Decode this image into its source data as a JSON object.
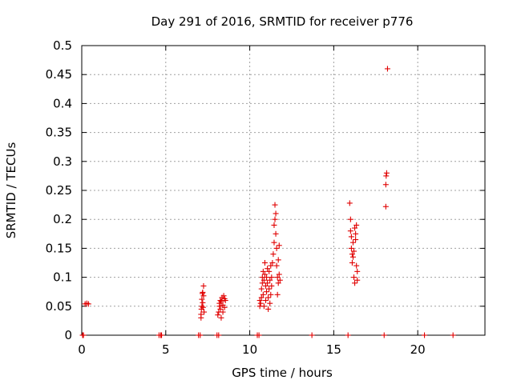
{
  "chart_data": {
    "type": "scatter",
    "title": "Day 291 of 2016, SRMTID for receiver p776",
    "xlabel": "GPS time / hours",
    "ylabel": "SRMTID / TECUs",
    "xlim": [
      0,
      24
    ],
    "ylim": [
      0,
      0.5
    ],
    "xticks": [
      0,
      5,
      10,
      15,
      20
    ],
    "yticks": [
      0,
      0.05,
      0.1,
      0.15,
      0.2,
      0.25,
      0.3,
      0.35,
      0.4,
      0.45,
      0.5
    ],
    "xtick_labels": [
      "0",
      "5",
      "10",
      "15",
      "20"
    ],
    "ytick_labels": [
      "0",
      "0.05",
      "0.1",
      "0.15",
      "0.2",
      "0.25",
      "0.3",
      "0.35",
      "0.4",
      "0.45",
      "0.5"
    ],
    "grid": true,
    "legend": "none",
    "marker": "+",
    "color": "#e00000",
    "series": [
      {
        "points": [
          [
            0.05,
            0
          ],
          [
            0.1,
            0
          ],
          [
            0.2,
            0.054
          ],
          [
            0.3,
            0.055
          ],
          [
            0.4,
            0.054
          ],
          [
            4.6,
            0
          ],
          [
            4.7,
            0
          ],
          [
            4.75,
            0
          ],
          [
            6.95,
            0
          ],
          [
            7.05,
            0
          ],
          [
            7.1,
            0.03
          ],
          [
            7.1,
            0.036
          ],
          [
            7.12,
            0.045
          ],
          [
            7.15,
            0.05
          ],
          [
            7.15,
            0.062
          ],
          [
            7.18,
            0.072
          ],
          [
            7.2,
            0.074
          ],
          [
            7.2,
            0.056
          ],
          [
            7.22,
            0.048
          ],
          [
            7.25,
            0.085
          ],
          [
            7.25,
            0.068
          ],
          [
            7.28,
            0.04
          ],
          [
            8.05,
            0
          ],
          [
            8.15,
            0
          ],
          [
            8.1,
            0.035
          ],
          [
            8.15,
            0.04
          ],
          [
            8.2,
            0.05
          ],
          [
            8.2,
            0.055
          ],
          [
            8.25,
            0.06
          ],
          [
            8.25,
            0.045
          ],
          [
            8.3,
            0.03
          ],
          [
            8.3,
            0.058
          ],
          [
            8.35,
            0.065
          ],
          [
            8.4,
            0.052
          ],
          [
            8.4,
            0.04
          ],
          [
            8.45,
            0.068
          ],
          [
            8.5,
            0.063
          ],
          [
            8.5,
            0.048
          ],
          [
            8.55,
            0.06
          ],
          [
            10.45,
            0
          ],
          [
            10.55,
            0
          ],
          [
            10.6,
            0.05
          ],
          [
            10.6,
            0.06
          ],
          [
            10.65,
            0.055
          ],
          [
            10.7,
            0.065
          ],
          [
            10.7,
            0.08
          ],
          [
            10.75,
            0.09
          ],
          [
            10.75,
            0.1
          ],
          [
            10.8,
            0.11
          ],
          [
            10.8,
            0.07
          ],
          [
            10.85,
            0.05
          ],
          [
            10.85,
            0.095
          ],
          [
            10.9,
            0.105
          ],
          [
            10.9,
            0.125
          ],
          [
            10.95,
            0.085
          ],
          [
            10.95,
            0.06
          ],
          [
            11.0,
            0.075
          ],
          [
            11.0,
            0.1
          ],
          [
            11.05,
            0.115
          ],
          [
            11.05,
            0.09
          ],
          [
            11.1,
            0.045
          ],
          [
            11.1,
            0.065
          ],
          [
            11.15,
            0.08
          ],
          [
            11.15,
            0.11
          ],
          [
            11.2,
            0.095
          ],
          [
            11.2,
            0.055
          ],
          [
            11.25,
            0.07
          ],
          [
            11.25,
            0.12
          ],
          [
            11.3,
            0.1
          ],
          [
            11.3,
            0.085
          ],
          [
            11.35,
            0.125
          ],
          [
            11.4,
            0.14
          ],
          [
            11.45,
            0.16
          ],
          [
            11.45,
            0.19
          ],
          [
            11.5,
            0.2
          ],
          [
            11.5,
            0.225
          ],
          [
            11.55,
            0.21
          ],
          [
            11.55,
            0.175
          ],
          [
            11.6,
            0.15
          ],
          [
            11.6,
            0.12
          ],
          [
            11.65,
            0.1
          ],
          [
            11.65,
            0.07
          ],
          [
            11.7,
            0.09
          ],
          [
            11.7,
            0.13
          ],
          [
            11.75,
            0.155
          ],
          [
            11.75,
            0.105
          ],
          [
            11.8,
            0.095
          ],
          [
            13.7,
            0
          ],
          [
            15.85,
            0
          ],
          [
            15.95,
            0.228
          ],
          [
            16.0,
            0.2
          ],
          [
            16.0,
            0.18
          ],
          [
            16.05,
            0.17
          ],
          [
            16.05,
            0.15
          ],
          [
            16.1,
            0.14
          ],
          [
            16.1,
            0.125
          ],
          [
            16.15,
            0.16
          ],
          [
            16.15,
            0.135
          ],
          [
            16.2,
            0.145
          ],
          [
            16.2,
            0.1
          ],
          [
            16.25,
            0.09
          ],
          [
            16.25,
            0.185
          ],
          [
            16.3,
            0.175
          ],
          [
            16.3,
            0.165
          ],
          [
            16.35,
            0.19
          ],
          [
            16.35,
            0.12
          ],
          [
            16.4,
            0.11
          ],
          [
            16.4,
            0.095
          ],
          [
            18.0,
            0
          ],
          [
            18.1,
            0.222
          ],
          [
            18.1,
            0.26
          ],
          [
            18.12,
            0.275
          ],
          [
            18.15,
            0.28
          ],
          [
            18.2,
            0.46
          ],
          [
            20.4,
            0
          ],
          [
            22.1,
            0
          ]
        ]
      }
    ]
  }
}
